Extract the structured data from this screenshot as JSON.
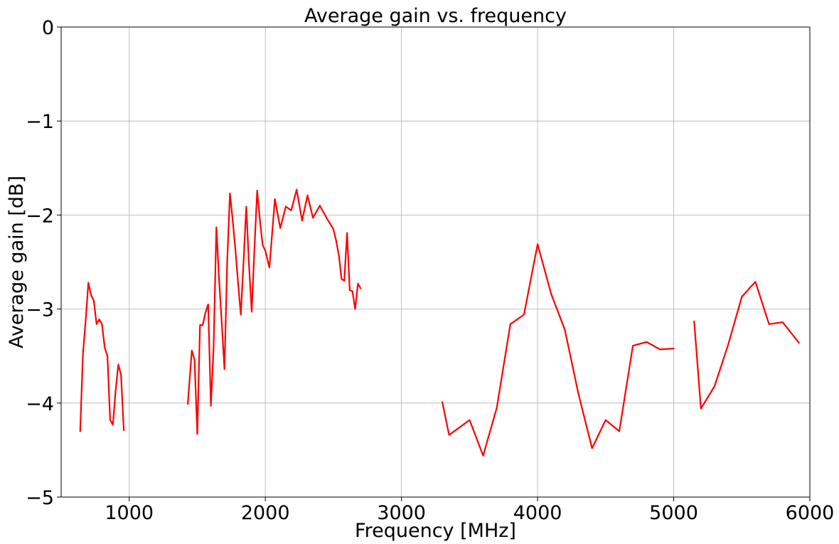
{
  "chart_data": {
    "type": "line",
    "title": "Average gain vs. frequency",
    "xlabel": "Frequency [MHz]",
    "ylabel": "Average gain [dB]",
    "xlim": [
      500,
      6000
    ],
    "ylim": [
      -5,
      0
    ],
    "xticks": [
      1000,
      2000,
      3000,
      4000,
      5000,
      6000
    ],
    "xtick_labels": [
      "1000",
      "2000",
      "3000",
      "4000",
      "5000",
      "6000"
    ],
    "yticks": [
      0,
      -1,
      -2,
      -3,
      -4,
      -5
    ],
    "ytick_labels": [
      "0",
      "−1",
      "−2",
      "−3",
      "−4",
      "−5"
    ],
    "grid": true,
    "color": "#ff0000",
    "segments": [
      {
        "x": [
          640,
          660,
          680,
          700,
          720,
          740,
          760,
          780,
          800,
          820,
          840,
          860,
          880,
          900,
          920,
          940,
          960
        ],
        "y": [
          -4.3,
          -3.48,
          -3.12,
          -2.72,
          -2.85,
          -2.91,
          -3.16,
          -3.11,
          -3.16,
          -3.41,
          -3.5,
          -4.18,
          -4.23,
          -3.87,
          -3.59,
          -3.7,
          -4.29
        ]
      },
      {
        "x": [
          1430,
          1460,
          1480,
          1500,
          1520,
          1540,
          1560,
          1580,
          1600,
          1620,
          1640,
          1660,
          1680,
          1700,
          1720,
          1740,
          1760,
          1780,
          1800,
          1820,
          1840,
          1860,
          1880,
          1900,
          1920,
          1940,
          1960,
          1980,
          2000,
          2030,
          2070,
          2110,
          2150,
          2190,
          2230,
          2270,
          2310,
          2350,
          2400,
          2450,
          2500,
          2520,
          2540,
          2560,
          2580,
          2600,
          2620,
          2640,
          2660,
          2680,
          2700
        ],
        "y": [
          -4.01,
          -3.44,
          -3.54,
          -4.33,
          -3.17,
          -3.17,
          -3.04,
          -2.95,
          -4.03,
          -3.41,
          -2.13,
          -2.68,
          -3.15,
          -3.64,
          -2.48,
          -1.77,
          -2.05,
          -2.37,
          -2.73,
          -3.06,
          -2.5,
          -1.91,
          -2.53,
          -3.03,
          -2.35,
          -1.74,
          -2.05,
          -2.32,
          -2.38,
          -2.56,
          -1.83,
          -2.14,
          -1.91,
          -1.95,
          -1.73,
          -2.06,
          -1.79,
          -2.03,
          -1.9,
          -2.03,
          -2.15,
          -2.27,
          -2.43,
          -2.68,
          -2.7,
          -2.19,
          -2.8,
          -2.81,
          -3.0,
          -2.73,
          -2.78
        ]
      },
      {
        "x": [
          3300,
          3350,
          3500,
          3600,
          3700,
          3800,
          3900,
          4000,
          4100,
          4200,
          4300,
          4400,
          4500,
          4600,
          4700,
          4800,
          4900,
          5000
        ],
        "y": [
          -3.99,
          -4.34,
          -4.18,
          -4.56,
          -4.05,
          -3.16,
          -3.06,
          -2.31,
          -2.84,
          -3.22,
          -3.9,
          -4.48,
          -4.18,
          -4.3,
          -3.39,
          -3.35,
          -3.43,
          -3.42
        ]
      },
      {
        "x": [
          5150,
          5200,
          5300,
          5400,
          5500,
          5600,
          5700,
          5800,
          5920
        ],
        "y": [
          -3.13,
          -4.06,
          -3.82,
          -3.38,
          -2.87,
          -2.71,
          -3.16,
          -3.14,
          -3.36
        ]
      }
    ]
  }
}
